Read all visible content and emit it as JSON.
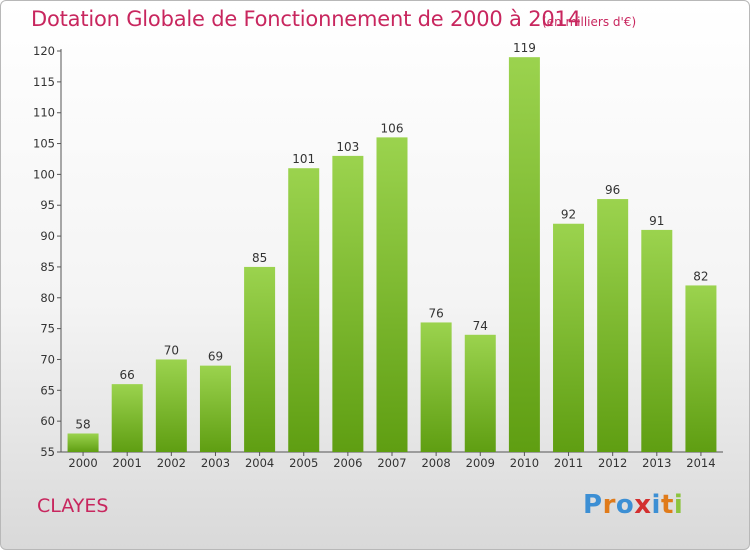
{
  "header": {
    "title": "Dotation Globale de Fonctionnement de 2000 à 2014",
    "unit": "(en milliers d'€)"
  },
  "footer": {
    "commune": "CLAYES",
    "logo": "Proxiti"
  },
  "colors": {
    "title": "#c8265e",
    "bar_top": "#9bd34e",
    "bar_bottom": "#5f9e12",
    "logo_letters": [
      "#3c8fd4",
      "#e07b1a",
      "#3c8fd4",
      "#d32f2f",
      "#3c8fd4",
      "#e07b1a",
      "#8cc43f"
    ]
  },
  "chart_data": {
    "type": "bar",
    "categories": [
      "2000",
      "2001",
      "2002",
      "2003",
      "2004",
      "2005",
      "2006",
      "2007",
      "2008",
      "2009",
      "2010",
      "2011",
      "2012",
      "2013",
      "2014"
    ],
    "values": [
      58,
      66,
      70,
      69,
      85,
      101,
      103,
      106,
      76,
      74,
      119,
      92,
      96,
      91,
      82
    ],
    "ylim": [
      55,
      120
    ],
    "yticks": [
      55,
      60,
      65,
      70,
      75,
      80,
      85,
      90,
      95,
      100,
      105,
      110,
      115,
      120
    ],
    "grid": false,
    "legend": "none"
  }
}
